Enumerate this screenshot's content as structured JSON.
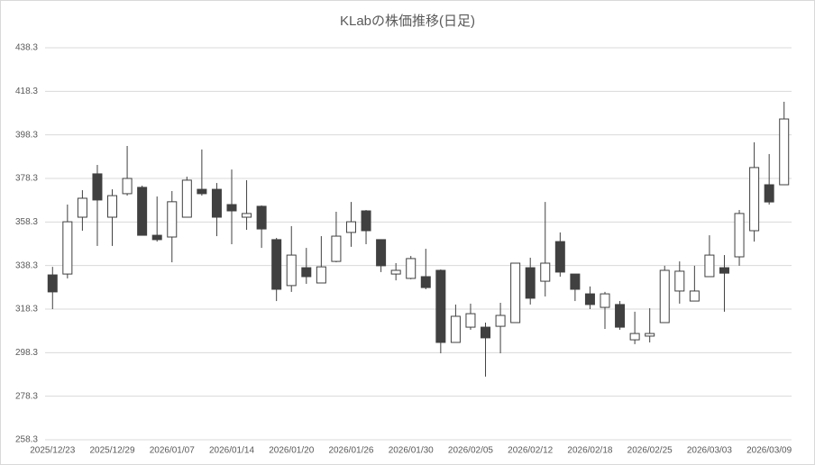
{
  "chart_data": {
    "type": "candlestick",
    "title": "KLabの株価推移(日足)",
    "categories": [
      "2025/12/23",
      null,
      null,
      null,
      "2025/12/29",
      null,
      null,
      null,
      "2026/01/07",
      null,
      null,
      null,
      "2026/01/14",
      null,
      null,
      null,
      "2026/01/20",
      null,
      null,
      null,
      "2026/01/26",
      null,
      null,
      null,
      "2026/01/30",
      null,
      null,
      null,
      "2026/02/05",
      null,
      null,
      null,
      "2026/02/12",
      null,
      null,
      null,
      "2026/02/18",
      null,
      null,
      null,
      "2026/02/25",
      null,
      null,
      null,
      "2026/03/03",
      null,
      null,
      null,
      "2026/03/09",
      null
    ],
    "open": [
      334.0,
      334.4,
      360.5,
      380.4,
      360.5,
      371.3,
      374.2,
      352.2,
      351.4,
      360.5,
      373.3,
      373.3,
      366.3,
      360.5,
      365.5,
      350.2,
      329.1,
      337.3,
      330.3,
      340.2,
      353.5,
      363.4,
      350.2,
      334.4,
      332.4,
      333.2,
      336.1,
      303.0,
      310.0,
      310.0,
      310.4,
      312.1,
      337.3,
      331.1,
      349.3,
      334.4,
      325.3,
      319.1,
      320.4,
      304.2,
      305.9,
      312.1,
      326.6,
      322.0,
      333.2,
      337.3,
      342.3,
      354.3,
      375.4,
      375.4
    ],
    "high": [
      337.7,
      366.3,
      372.9,
      384.5,
      373.3,
      393.2,
      375.0,
      370.0,
      372.5,
      379.1,
      391.6,
      376.2,
      382.4,
      377.5,
      365.9,
      351.0,
      356.4,
      346.4,
      351.8,
      363.0,
      367.5,
      363.8,
      350.2,
      339.4,
      342.7,
      346.0,
      336.5,
      320.4,
      320.8,
      312.1,
      321.2,
      339.4,
      341.9,
      367.5,
      353.5,
      334.4,
      328.7,
      326.2,
      322.0,
      317.1,
      318.7,
      338.2,
      340.2,
      338.2,
      352.2,
      343.1,
      363.8,
      394.9,
      389.5,
      413.5
    ],
    "low": [
      318.3,
      332.4,
      354.3,
      347.3,
      347.3,
      370.4,
      352.2,
      349.3,
      339.8,
      360.5,
      370.4,
      351.8,
      348.1,
      354.7,
      346.4,
      322.0,
      326.2,
      329.9,
      330.3,
      339.8,
      346.9,
      348.1,
      335.3,
      331.5,
      332.0,
      327.4,
      298.0,
      303.0,
      308.8,
      287.3,
      298.0,
      312.1,
      320.4,
      324.1,
      333.2,
      322.0,
      318.3,
      309.2,
      308.8,
      302.2,
      303.0,
      312.1,
      320.8,
      322.0,
      333.2,
      317.1,
      338.2,
      349.3,
      366.3,
      375.4
    ],
    "close": [
      326.2,
      358.4,
      369.2,
      368.4,
      370.4,
      378.3,
      352.2,
      350.2,
      367.6,
      377.5,
      371.3,
      360.5,
      363.4,
      362.2,
      355.1,
      327.4,
      343.1,
      333.2,
      337.7,
      351.8,
      358.4,
      354.3,
      338.2,
      336.1,
      341.5,
      328.2,
      303.0,
      315.0,
      316.2,
      305.1,
      315.4,
      339.4,
      323.3,
      339.4,
      335.3,
      327.4,
      320.4,
      325.3,
      310.0,
      307.1,
      307.1,
      336.1,
      335.7,
      326.6,
      343.1,
      334.8,
      362.2,
      383.3,
      367.5,
      405.6
    ],
    "up_color": "#ffffff",
    "down_color": "#404040",
    "stroke_color": "#404040",
    "ylim": [
      258.3,
      438.3
    ],
    "yticks": [
      258.3,
      278.3,
      298.3,
      318.3,
      338.3,
      358.3,
      378.3,
      398.3,
      418.3,
      438.3
    ],
    "grid": true
  }
}
